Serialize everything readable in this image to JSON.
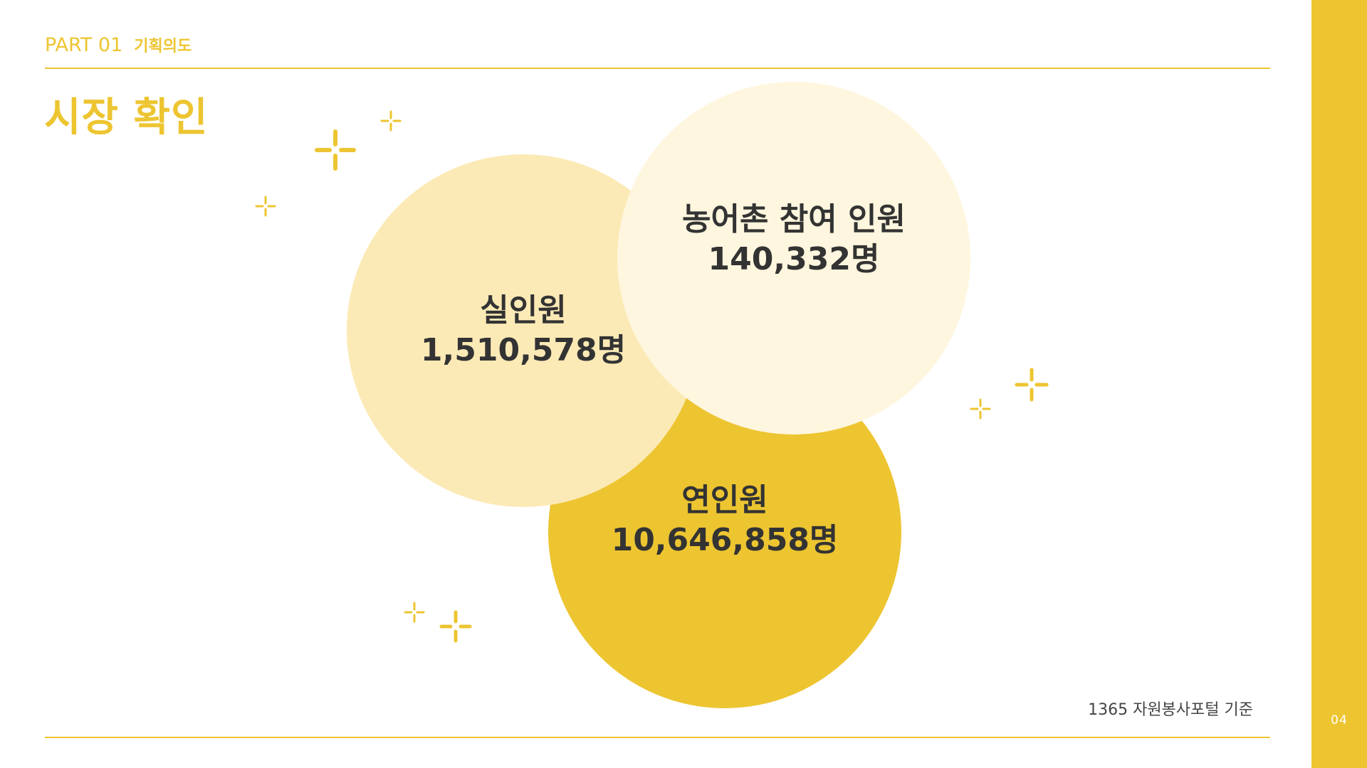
{
  "header": {
    "part": "PART 01",
    "section": "기획의도"
  },
  "title": "시장 확인",
  "circles": {
    "real": {
      "label": "실인원",
      "value": "1,510,578명"
    },
    "rural": {
      "label": "농어촌 참여 인원",
      "value": "140,332명"
    },
    "total": {
      "label": "연인원",
      "value": "10,646,858명"
    }
  },
  "source": "1365 자원봉사포털 기준",
  "page_number": "04",
  "colors": {
    "accent": "#EDC531",
    "circle_real": "#FCEAB6",
    "circle_rural": "#FEF6DE",
    "circle_total": "#EDC531",
    "text": "#333333"
  },
  "icons": [
    "sparkle-icon"
  ]
}
